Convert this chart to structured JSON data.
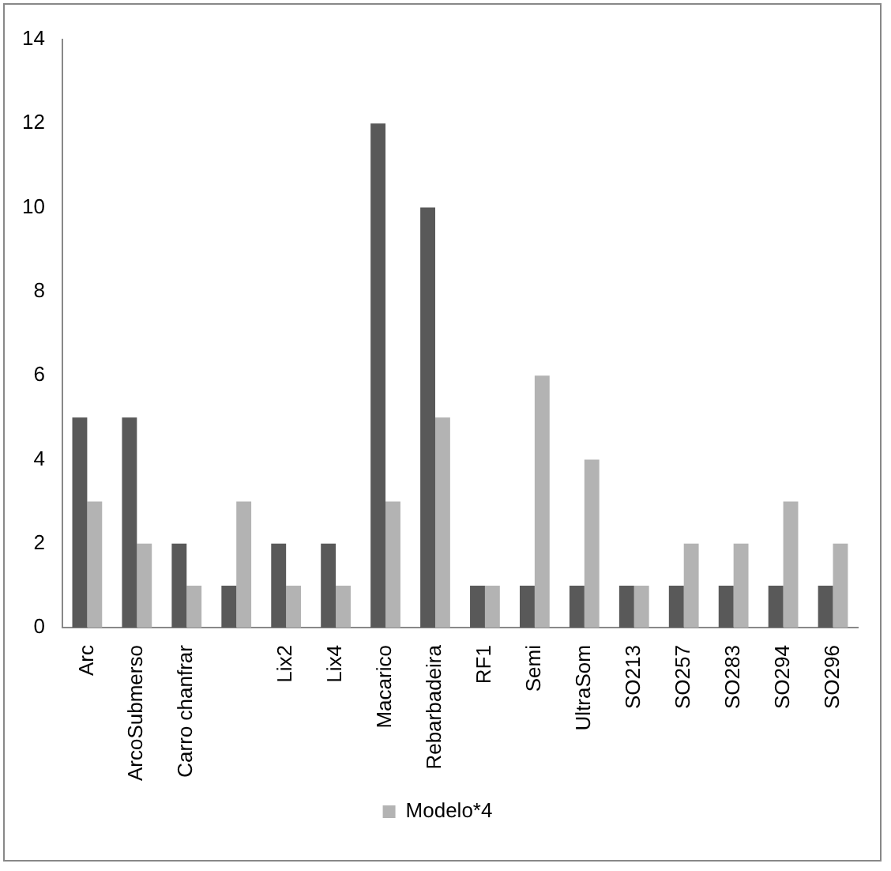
{
  "chart_data": {
    "type": "bar",
    "categories": [
      "Arc",
      "ArcoSubmerso",
      "Carro chanfrar",
      null,
      "Lix2",
      "Lix4",
      "Macarico",
      "Rebarbadeira",
      "RF1",
      "Semi",
      "UltraSom",
      "SO213",
      "SO257",
      "SO283",
      "SO294",
      "SO296"
    ],
    "series": [
      {
        "color": "#595959",
        "values": [
          5,
          5,
          2,
          1,
          2,
          2,
          12,
          10,
          1,
          1,
          1,
          1,
          1,
          1,
          1,
          1
        ]
      },
      {
        "name": "Modelo*4",
        "color": "#b3b3b3",
        "values": [
          3,
          2,
          1,
          3,
          1,
          1,
          3,
          5,
          1,
          6,
          4,
          1,
          2,
          2,
          3,
          2
        ]
      }
    ],
    "ylim": [
      0,
      14
    ],
    "yticks": [
      0,
      2,
      4,
      6,
      8,
      10,
      12,
      14
    ],
    "grid": false,
    "legend": "bottom"
  }
}
